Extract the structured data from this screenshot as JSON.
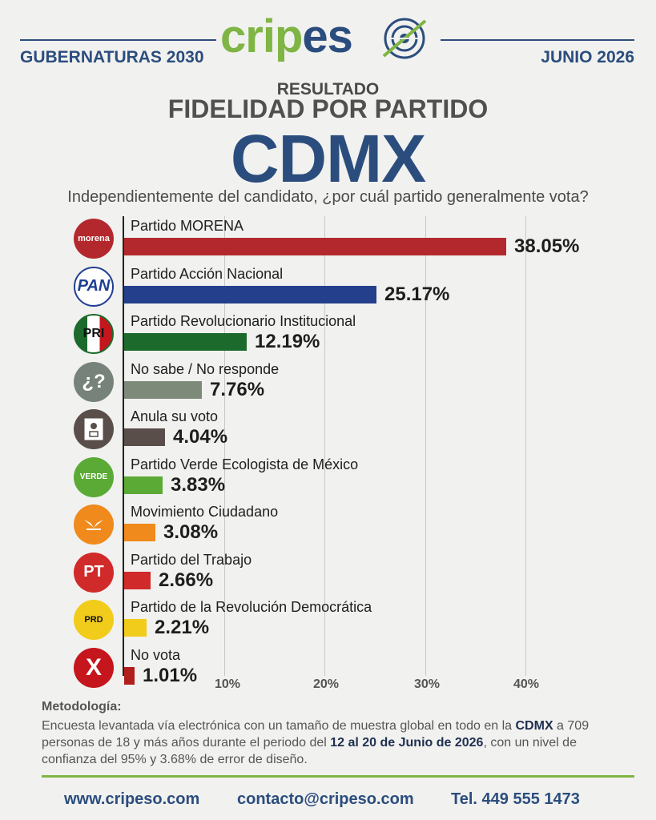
{
  "header": {
    "left": "GUBERNATURAS 2030",
    "right": "JUNIO 2026",
    "brand_part1": "crip",
    "brand_part2": "es"
  },
  "titles": {
    "line1": "RESULTADO",
    "line2": "FIDELIDAD POR PARTIDO",
    "line3": "CDMX",
    "question": "Independientemente del candidato, ¿por cuál partido generalmente vota?"
  },
  "chart_data": {
    "type": "bar",
    "orientation": "horizontal",
    "categories": [
      "Partido MORENA",
      "Partido Acción Nacional",
      "Partido Revolucionario Institucional",
      "No sabe / No responde",
      "Anula su voto",
      "Partido Verde Ecologista de México",
      "Movimiento Ciudadano",
      "Partido del Trabajo",
      "Partido de la Revolución Democrática",
      "No vota"
    ],
    "values": [
      38.05,
      25.17,
      12.19,
      7.76,
      4.04,
      3.83,
      3.08,
      2.66,
      2.21,
      1.01
    ],
    "value_labels": [
      "38.05%",
      "25.17%",
      "12.19%",
      "7.76%",
      "4.04%",
      "3.83%",
      "3.08%",
      "2.66%",
      "2.21%",
      "1.01%"
    ],
    "colors": [
      "#b3282d",
      "#243f8c",
      "#1d6b2c",
      "#7d8a7a",
      "#5a4e4a",
      "#5aaa35",
      "#f08a1c",
      "#d02a2a",
      "#f2cc1b",
      "#b01e1e"
    ],
    "x_ticks": [
      "10%",
      "20%",
      "30%",
      "40%"
    ],
    "xlim": [
      0,
      40
    ],
    "grid": true
  },
  "logos": [
    {
      "icon": "morena-logo-icon",
      "text": "morena",
      "bg": "#b3282d"
    },
    {
      "icon": "pan-logo-icon",
      "text": "PAN",
      "bg": "#1f3f94"
    },
    {
      "icon": "pri-logo-icon",
      "text": "PRI",
      "bg": "#1d6b2c"
    },
    {
      "icon": "question-logo-icon",
      "text": "¿?",
      "bg": "#76827a"
    },
    {
      "icon": "ballot-logo-icon",
      "text": "",
      "bg": "#5a4e4a"
    },
    {
      "icon": "verde-logo-icon",
      "text": "VERDE",
      "bg": "#5aaa35"
    },
    {
      "icon": "mc-logo-icon",
      "text": "",
      "bg": "#f08a1c"
    },
    {
      "icon": "pt-logo-icon",
      "text": "PT",
      "bg": "#d02a2a"
    },
    {
      "icon": "prd-logo-icon",
      "text": "PRD",
      "bg": "#f2cc1b"
    },
    {
      "icon": "x-logo-icon",
      "text": "X",
      "bg": "#c4161c"
    }
  ],
  "methodology": {
    "heading": "Metodología:",
    "t1": "Encuesta levantada vía electrónica con un tamaño de muestra global en todo en la ",
    "b1": "CDMX",
    "t2": " a 709 personas de 18 y más años durante el periodo del ",
    "b2": "12 al 20 de Junio de 2026",
    "t3": ", con un nivel de confianza del 95% y 3.68% de error de diseño."
  },
  "footer": {
    "web": "www.cripeso.com",
    "email": "contacto@cripeso.com",
    "phone": "Tel. 449 555 1473"
  }
}
